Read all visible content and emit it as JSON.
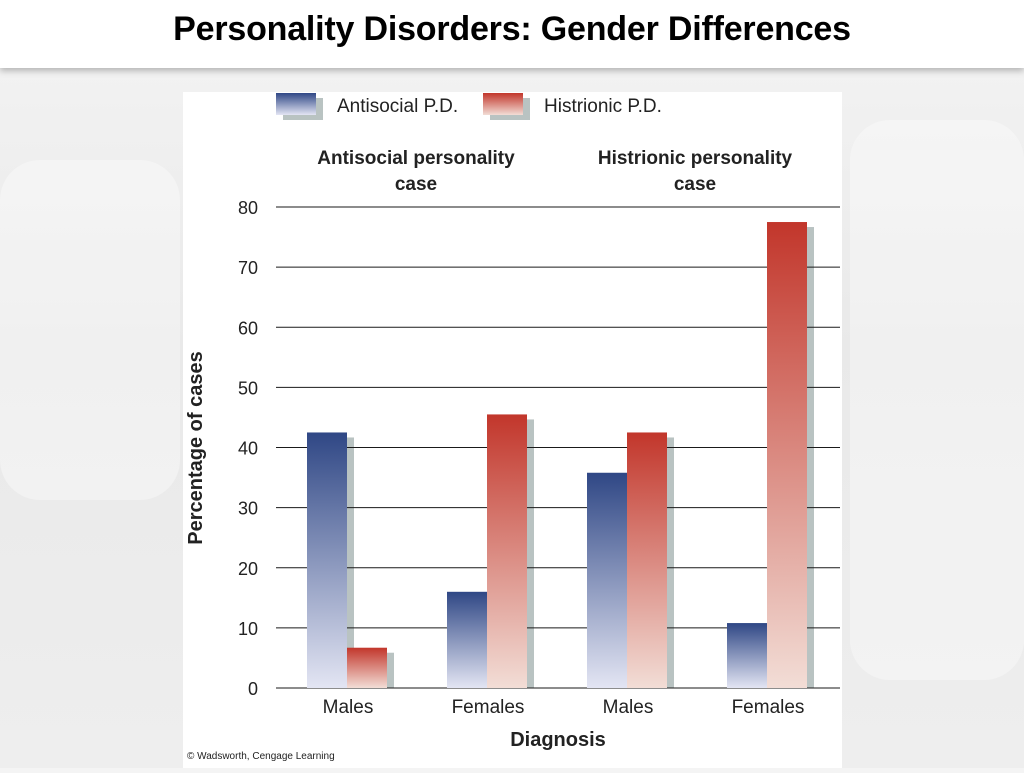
{
  "slide": {
    "title": "Personality Disorders: Gender Differences"
  },
  "chart_data": {
    "type": "bar",
    "ylabel": "Percentage of cases",
    "xlabel": "Diagnosis",
    "ylim": [
      0,
      80
    ],
    "yticks": [
      0,
      10,
      20,
      30,
      40,
      50,
      60,
      70,
      80
    ],
    "grid": true,
    "legend_position": "top-left",
    "groups": [
      "Antisocial personality case",
      "Histrionic personality case"
    ],
    "categories": [
      "Males",
      "Females",
      "Males",
      "Females"
    ],
    "series": [
      {
        "name": "Antisocial P.D.",
        "color": "#3a4f8c",
        "values": [
          42.5,
          16,
          35.8,
          10.8
        ]
      },
      {
        "name": "Histrionic P.D.",
        "color": "#c43a2c",
        "values": [
          6.7,
          45.5,
          42.5,
          77.5
        ]
      }
    ]
  },
  "copyright": "© Wadsworth, Cengage Learning"
}
